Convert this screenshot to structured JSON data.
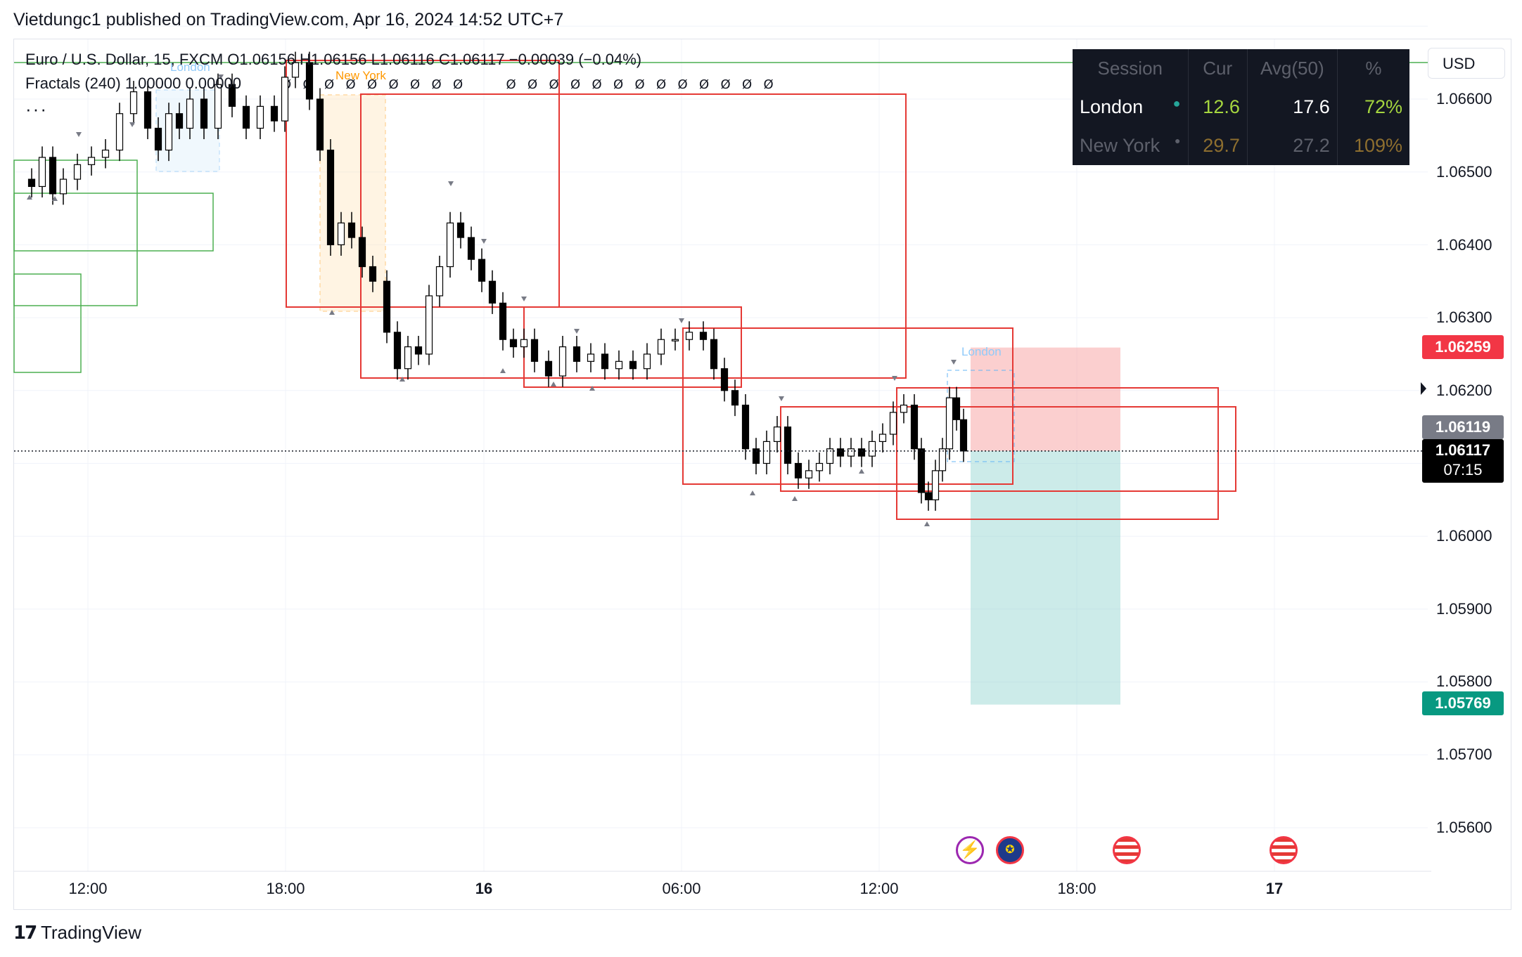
{
  "publisher_line": "Vietdungc1 published on TradingView.com, Apr 16, 2024 14:52 UTC+7",
  "legend": {
    "symbol_line": "Euro / U.S. Dollar, 15, FXCM  O1.06156  H1.06156  L1.06116  C1.06117  −0.00039 (−0.04%)",
    "indicator_line": "Fractals (240)  1.00000  0.00000",
    "more": "···"
  },
  "currency_button": "USD",
  "price_tags": {
    "red": "1.06259",
    "grey": "1.06119",
    "current": "1.06117",
    "countdown": "07:15",
    "green": "1.05769"
  },
  "session_table": {
    "headers": [
      "Session",
      "Cur",
      "Avg(50)",
      "%"
    ],
    "rows": [
      {
        "name": "London",
        "cur": "12.6",
        "avg": "17.6",
        "pct": "72%"
      },
      {
        "name": "New York",
        "cur": "29.7",
        "avg": "27.2",
        "pct": "109%"
      }
    ]
  },
  "session_labels": {
    "london": "London",
    "new_york": "New York"
  },
  "fractal_glyph": "Ø",
  "brand": "TradingView",
  "colors": {
    "up": "#ffffff",
    "down": "#000000",
    "box_red": "#e53935",
    "box_green": "#4caf50",
    "position_red": "#f7a8a8",
    "position_green": "#8fd3cf"
  },
  "chart_data": {
    "type": "candlestick",
    "symbol": "Euro / U.S. Dollar",
    "interval": "15",
    "exchange": "FXCM",
    "y_ticks": [
      "1.06600",
      "1.06500",
      "1.06400",
      "1.06300",
      "1.06200",
      "1.06000",
      "1.05900",
      "1.05800",
      "1.05700",
      "1.05600"
    ],
    "x_ticks": [
      {
        "label": "12:00",
        "bold": false
      },
      {
        "label": "18:00",
        "bold": false
      },
      {
        "label": "16",
        "bold": true
      },
      {
        "label": "06:00",
        "bold": false
      },
      {
        "label": "12:00",
        "bold": false
      },
      {
        "label": "18:00",
        "bold": false
      },
      {
        "label": "17",
        "bold": true
      }
    ],
    "ylim": [
      1.0553,
      1.0673
    ],
    "current_price": 1.06117,
    "position": {
      "entry": 1.06117,
      "stop": 1.06259,
      "target": 1.05769
    },
    "grid": true
  }
}
